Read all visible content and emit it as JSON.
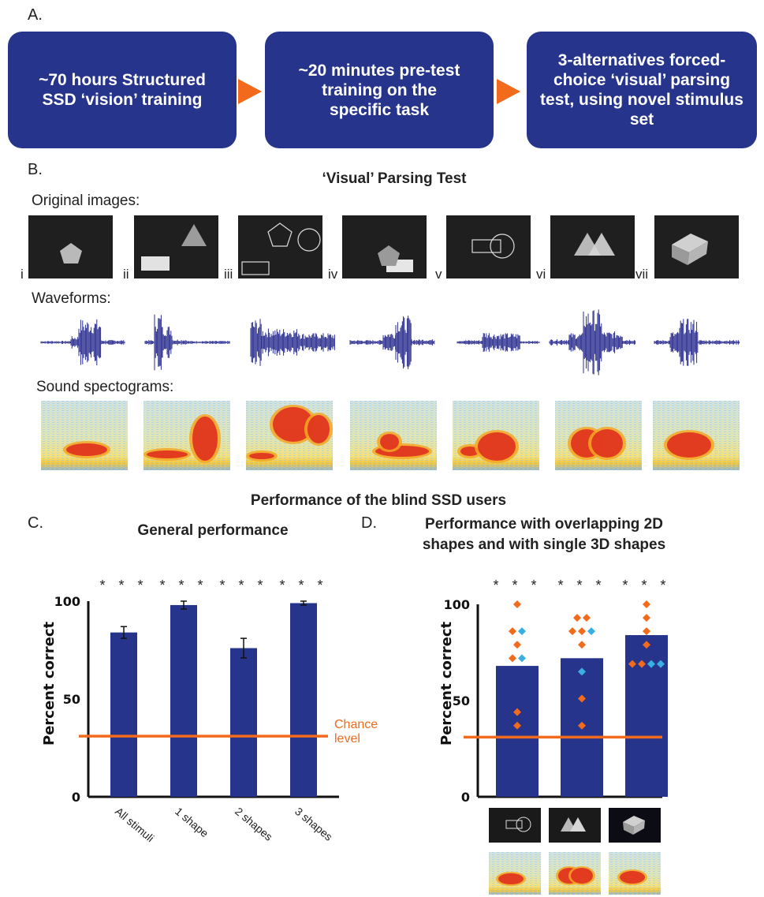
{
  "panel_a": {
    "label": "A.",
    "steps": [
      "~70 hours Structured SSD ‘vision’ training",
      "~20 minutes pre-test training on the specific task",
      "3-alternatives forced-choice ‘visual’ parsing test, using novel stimulus set"
    ],
    "arrow_color": "#f26a1b",
    "box_color": "#26348c"
  },
  "panel_b": {
    "label": "B.",
    "title": "‘Visual’ Parsing Test",
    "original_images_label": "Original images:",
    "waveforms_label": "Waveforms:",
    "spectrograms_label": "Sound spectograms:",
    "image_labels": [
      "i",
      "ii",
      "iii",
      "iv",
      "v",
      "vi",
      "vii"
    ]
  },
  "performance_title": "Performance of the blind SSD users",
  "panel_c": {
    "label": "C.",
    "title": "General performance",
    "significance": "* * *",
    "chance_label_line1": "Chance",
    "chance_label_line2": "level"
  },
  "panel_d": {
    "label": "D.",
    "title_line1": "Performance with overlapping 2D",
    "title_line2": "shapes and with single 3D shapes",
    "significance": "* * *"
  },
  "chart_data": [
    {
      "type": "bar",
      "title": "General performance",
      "ylabel": "Percent correct",
      "ylim": [
        0,
        100
      ],
      "yticks": [
        "0",
        "50",
        "100"
      ],
      "categories": [
        "All stimuli",
        "1 shape",
        "2 shapes",
        "3 shapes"
      ],
      "values": [
        84,
        98,
        76,
        99
      ],
      "errors": [
        3,
        2,
        5,
        1
      ],
      "chance_level": 31,
      "bar_color": "#26348c",
      "chance_color": "#f26a1b"
    },
    {
      "type": "bar",
      "title": "Performance with overlapping 2D shapes and with single 3D shapes",
      "ylabel": "Percent correct",
      "ylim": [
        0,
        100
      ],
      "yticks": [
        "0",
        "50",
        "100"
      ],
      "categories": [
        "",
        "",
        ""
      ],
      "values": [
        68,
        72,
        84
      ],
      "chance_level": 31,
      "bar_color": "#26348c",
      "chance_color": "#f26a1b",
      "points": [
        [
          {
            "y": 100,
            "c": "orange"
          },
          {
            "y": 86,
            "c": "orange"
          },
          {
            "y": 86,
            "c": "blue"
          },
          {
            "y": 79,
            "c": "orange"
          },
          {
            "y": 72,
            "c": "orange"
          },
          {
            "y": 72,
            "c": "blue"
          },
          {
            "y": 44,
            "c": "orange"
          },
          {
            "y": 37,
            "c": "orange"
          }
        ],
        [
          {
            "y": 93,
            "c": "orange"
          },
          {
            "y": 93,
            "c": "orange"
          },
          {
            "y": 86,
            "c": "orange"
          },
          {
            "y": 86,
            "c": "orange"
          },
          {
            "y": 86,
            "c": "blue"
          },
          {
            "y": 79,
            "c": "orange"
          },
          {
            "y": 65,
            "c": "blue"
          },
          {
            "y": 51,
            "c": "orange"
          },
          {
            "y": 37,
            "c": "orange"
          }
        ],
        [
          {
            "y": 100,
            "c": "orange"
          },
          {
            "y": 93,
            "c": "orange"
          },
          {
            "y": 86,
            "c": "orange"
          },
          {
            "y": 79,
            "c": "orange"
          },
          {
            "y": 69,
            "c": "orange"
          },
          {
            "y": 69,
            "c": "orange"
          },
          {
            "y": 69,
            "c": "blue"
          },
          {
            "y": 69,
            "c": "blue"
          }
        ]
      ],
      "point_colors": {
        "orange": "#f26a1b",
        "blue": "#3ab0e0"
      }
    }
  ]
}
